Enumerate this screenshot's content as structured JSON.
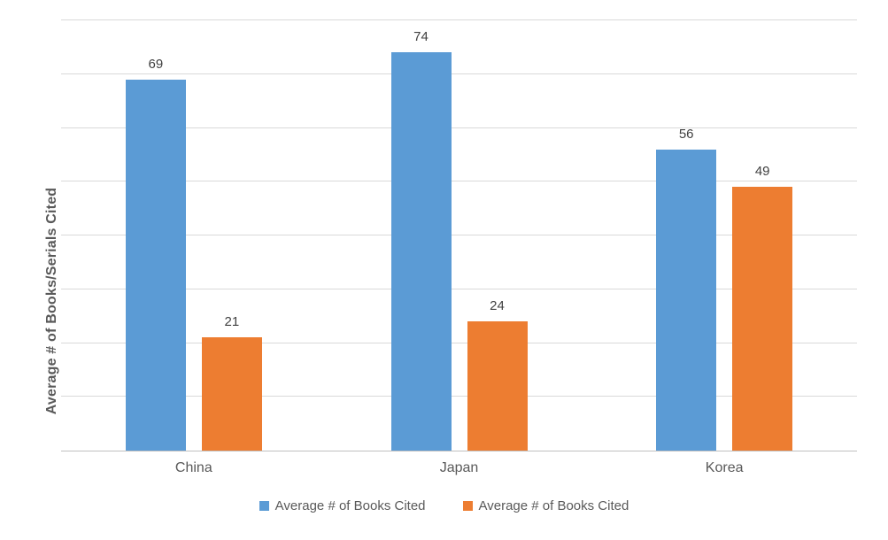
{
  "chart_data": {
    "type": "bar",
    "title": "",
    "categories": [
      "China",
      "Japan",
      "Korea"
    ],
    "series": [
      {
        "name": "Average # of Books Cited",
        "color": "#5B9BD5",
        "values": [
          69,
          74,
          56
        ]
      },
      {
        "name": "Average # of Books Cited",
        "color": "#ED7D31",
        "values": [
          21,
          24,
          49
        ]
      }
    ],
    "xlabel": "",
    "ylabel": "Average # of Books/Serials Cited",
    "ylim": [
      0,
      80
    ],
    "gridline_step": 10,
    "grid": true,
    "y_tick_labels_visible": false,
    "data_labels_visible": true,
    "legend_position": "bottom"
  },
  "colors": {
    "background": "#FFFFFF",
    "gridline": "#D9D9D9",
    "axis_line": "#BFBFBF",
    "axis_text": "#595959",
    "data_label_text": "#404040",
    "series1": "#5B9BD5",
    "series2": "#ED7D31"
  }
}
